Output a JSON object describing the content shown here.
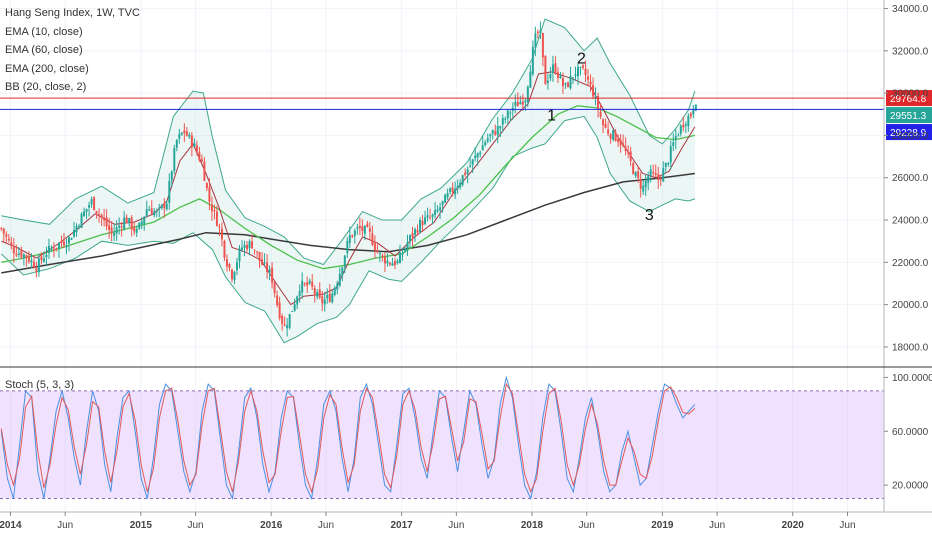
{
  "chart_data": [
    {
      "type": "candlestick",
      "title": "Hang Seng Index, 1W, TVC",
      "legend": [
        "Hang Seng Index, 1W, TVC",
        "EMA (10, close)",
        "EMA (60, close)",
        "EMA (200, close)",
        "BB (20, close, 2)"
      ],
      "y_ticks": [
        34000,
        32000,
        30000,
        28000,
        26000,
        24000,
        22000,
        20000,
        18000
      ],
      "y_tick_labels": [
        "34000.0",
        "32000.0",
        "30000.0",
        "28000.0",
        "26000.0",
        "24000.0",
        "22000.0",
        "20000.0",
        "18000.0"
      ],
      "ylim": [
        17100,
        34400
      ],
      "x_ticks": [
        {
          "label": "2014",
          "x": 2014.0
        },
        {
          "label": "Jun",
          "x": 2014.42
        },
        {
          "label": "2015",
          "x": 2015.0
        },
        {
          "label": "Jun",
          "x": 2015.42
        },
        {
          "label": "2016",
          "x": 2016.0
        },
        {
          "label": "Jun",
          "x": 2016.42
        },
        {
          "label": "2017",
          "x": 2017.0
        },
        {
          "label": "Jun",
          "x": 2017.42
        },
        {
          "label": "2018",
          "x": 2018.0
        },
        {
          "label": "Jun",
          "x": 2018.42
        },
        {
          "label": "2019",
          "x": 2019.0
        },
        {
          "label": "Jun",
          "x": 2019.42
        },
        {
          "label": "2020",
          "x": 2020.0
        },
        {
          "label": "Jun",
          "x": 2020.42
        }
      ],
      "xlim": [
        2013.92,
        2020.7
      ],
      "price_path": [
        [
          2013.93,
          23600
        ],
        [
          2014.02,
          22600
        ],
        [
          2014.12,
          22300
        ],
        [
          2014.2,
          21800
        ],
        [
          2014.28,
          22500
        ],
        [
          2014.38,
          22900
        ],
        [
          2014.45,
          23100
        ],
        [
          2014.55,
          24200
        ],
        [
          2014.62,
          24900
        ],
        [
          2014.7,
          24100
        ],
        [
          2014.78,
          23300
        ],
        [
          2014.88,
          24100
        ],
        [
          2014.97,
          23400
        ],
        [
          2015.05,
          24600
        ],
        [
          2015.13,
          24300
        ],
        [
          2015.2,
          24900
        ],
        [
          2015.27,
          27700
        ],
        [
          2015.33,
          28200
        ],
        [
          2015.4,
          27600
        ],
        [
          2015.47,
          26700
        ],
        [
          2015.52,
          25000
        ],
        [
          2015.55,
          24500
        ],
        [
          2015.6,
          23700
        ],
        [
          2015.65,
          22200
        ],
        [
          2015.7,
          21400
        ],
        [
          2015.77,
          22700
        ],
        [
          2015.85,
          22900
        ],
        [
          2015.92,
          22000
        ],
        [
          2016.0,
          21400
        ],
        [
          2016.05,
          19900
        ],
        [
          2016.1,
          18900
        ],
        [
          2016.15,
          19600
        ],
        [
          2016.22,
          20900
        ],
        [
          2016.3,
          20900
        ],
        [
          2016.38,
          20100
        ],
        [
          2016.46,
          20400
        ],
        [
          2016.52,
          21400
        ],
        [
          2016.6,
          23200
        ],
        [
          2016.67,
          23600
        ],
        [
          2016.75,
          23400
        ],
        [
          2016.82,
          22400
        ],
        [
          2016.9,
          22000
        ],
        [
          2016.97,
          22000
        ],
        [
          2017.05,
          23000
        ],
        [
          2017.15,
          23900
        ],
        [
          2017.25,
          24200
        ],
        [
          2017.35,
          25100
        ],
        [
          2017.45,
          25900
        ],
        [
          2017.55,
          26800
        ],
        [
          2017.65,
          27800
        ],
        [
          2017.75,
          28400
        ],
        [
          2017.85,
          29300
        ],
        [
          2017.95,
          29800
        ],
        [
          2018.02,
          32500
        ],
        [
          2018.06,
          33000
        ],
        [
          2018.1,
          30500
        ],
        [
          2018.17,
          31300
        ],
        [
          2018.25,
          30200
        ],
        [
          2018.33,
          31000
        ],
        [
          2018.4,
          31000
        ],
        [
          2018.47,
          30000
        ],
        [
          2018.55,
          28400
        ],
        [
          2018.6,
          28100
        ],
        [
          2018.67,
          27800
        ],
        [
          2018.75,
          26800
        ],
        [
          2018.8,
          26000
        ],
        [
          2018.85,
          25500
        ],
        [
          2018.9,
          26200
        ],
        [
          2018.97,
          25900
        ],
        [
          2019.03,
          26600
        ],
        [
          2019.1,
          27900
        ],
        [
          2019.17,
          28700
        ],
        [
          2019.22,
          29000
        ],
        [
          2019.25,
          29700
        ]
      ],
      "ema10_path": [
        [
          2013.93,
          23000
        ],
        [
          2014.05,
          22700
        ],
        [
          2014.2,
          22200
        ],
        [
          2014.35,
          22800
        ],
        [
          2014.5,
          23500
        ],
        [
          2014.65,
          24300
        ],
        [
          2014.8,
          23800
        ],
        [
          2014.95,
          23900
        ],
        [
          2015.1,
          24300
        ],
        [
          2015.2,
          24900
        ],
        [
          2015.3,
          26800
        ],
        [
          2015.4,
          27600
        ],
        [
          2015.5,
          26200
        ],
        [
          2015.6,
          24600
        ],
        [
          2015.7,
          22700
        ],
        [
          2015.8,
          22500
        ],
        [
          2015.92,
          22100
        ],
        [
          2016.05,
          20900
        ],
        [
          2016.15,
          20000
        ],
        [
          2016.25,
          20400
        ],
        [
          2016.4,
          20500
        ],
        [
          2016.5,
          20800
        ],
        [
          2016.6,
          22100
        ],
        [
          2016.7,
          23200
        ],
        [
          2016.82,
          22900
        ],
        [
          2016.95,
          22300
        ],
        [
          2017.1,
          23200
        ],
        [
          2017.25,
          23900
        ],
        [
          2017.4,
          25300
        ],
        [
          2017.55,
          26400
        ],
        [
          2017.7,
          27600
        ],
        [
          2017.85,
          28800
        ],
        [
          2017.97,
          29500
        ],
        [
          2018.05,
          30900
        ],
        [
          2018.15,
          31000
        ],
        [
          2018.3,
          30700
        ],
        [
          2018.45,
          30300
        ],
        [
          2018.55,
          29200
        ],
        [
          2018.65,
          28000
        ],
        [
          2018.75,
          27100
        ],
        [
          2018.85,
          26200
        ],
        [
          2018.95,
          26000
        ],
        [
          2019.05,
          26300
        ],
        [
          2019.15,
          27400
        ],
        [
          2019.25,
          28400
        ]
      ],
      "ema60_path": [
        [
          2013.93,
          22000
        ],
        [
          2014.1,
          22200
        ],
        [
          2014.3,
          22500
        ],
        [
          2014.5,
          22900
        ],
        [
          2014.7,
          23300
        ],
        [
          2014.9,
          23600
        ],
        [
          2015.1,
          23900
        ],
        [
          2015.3,
          24600
        ],
        [
          2015.45,
          25000
        ],
        [
          2015.6,
          24500
        ],
        [
          2015.8,
          23600
        ],
        [
          2016.0,
          22800
        ],
        [
          2016.2,
          22100
        ],
        [
          2016.4,
          21700
        ],
        [
          2016.6,
          21900
        ],
        [
          2016.8,
          22200
        ],
        [
          2017.0,
          22400
        ],
        [
          2017.2,
          23200
        ],
        [
          2017.4,
          24100
        ],
        [
          2017.6,
          25200
        ],
        [
          2017.8,
          26600
        ],
        [
          2018.0,
          27900
        ],
        [
          2018.2,
          29000
        ],
        [
          2018.35,
          29400
        ],
        [
          2018.5,
          29300
        ],
        [
          2018.65,
          28900
        ],
        [
          2018.8,
          28400
        ],
        [
          2018.95,
          27900
        ],
        [
          2019.1,
          27800
        ],
        [
          2019.25,
          28000
        ]
      ],
      "ema200_path": [
        [
          2013.93,
          21500
        ],
        [
          2014.3,
          21900
        ],
        [
          2014.7,
          22300
        ],
        [
          2015.0,
          22700
        ],
        [
          2015.3,
          23100
        ],
        [
          2015.5,
          23400
        ],
        [
          2015.8,
          23300
        ],
        [
          2016.0,
          23100
        ],
        [
          2016.3,
          22800
        ],
        [
          2016.6,
          22600
        ],
        [
          2016.9,
          22500
        ],
        [
          2017.2,
          22800
        ],
        [
          2017.5,
          23300
        ],
        [
          2017.8,
          24000
        ],
        [
          2018.1,
          24700
        ],
        [
          2018.4,
          25300
        ],
        [
          2018.7,
          25800
        ],
        [
          2019.0,
          26000
        ],
        [
          2019.25,
          26200
        ]
      ],
      "bb_upper_path": [
        [
          2013.93,
          24200
        ],
        [
          2014.1,
          24000
        ],
        [
          2014.3,
          23800
        ],
        [
          2014.5,
          25000
        ],
        [
          2014.7,
          25600
        ],
        [
          2014.9,
          24800
        ],
        [
          2015.1,
          25300
        ],
        [
          2015.25,
          28900
        ],
        [
          2015.4,
          30100
        ],
        [
          2015.48,
          30000
        ],
        [
          2015.55,
          27900
        ],
        [
          2015.65,
          25400
        ],
        [
          2015.8,
          24100
        ],
        [
          2015.95,
          23700
        ],
        [
          2016.1,
          23200
        ],
        [
          2016.25,
          22200
        ],
        [
          2016.4,
          21900
        ],
        [
          2016.55,
          23100
        ],
        [
          2016.7,
          24400
        ],
        [
          2016.85,
          24000
        ],
        [
          2017.0,
          24000
        ],
        [
          2017.15,
          25000
        ],
        [
          2017.3,
          25500
        ],
        [
          2017.5,
          26700
        ],
        [
          2017.7,
          28800
        ],
        [
          2017.85,
          30000
        ],
        [
          2018.0,
          31600
        ],
        [
          2018.1,
          33500
        ],
        [
          2018.25,
          33100
        ],
        [
          2018.4,
          32000
        ],
        [
          2018.5,
          32600
        ],
        [
          2018.6,
          31400
        ],
        [
          2018.75,
          29900
        ],
        [
          2018.9,
          28000
        ],
        [
          2019.0,
          27600
        ],
        [
          2019.1,
          28300
        ],
        [
          2019.2,
          29200
        ],
        [
          2019.25,
          30100
        ]
      ],
      "bb_lower_path": [
        [
          2013.93,
          22400
        ],
        [
          2014.1,
          21400
        ],
        [
          2014.3,
          21700
        ],
        [
          2014.5,
          22200
        ],
        [
          2014.7,
          23000
        ],
        [
          2014.9,
          22800
        ],
        [
          2015.1,
          23000
        ],
        [
          2015.25,
          22900
        ],
        [
          2015.4,
          23400
        ],
        [
          2015.55,
          22600
        ],
        [
          2015.65,
          21300
        ],
        [
          2015.8,
          20100
        ],
        [
          2015.95,
          19700
        ],
        [
          2016.1,
          18200
        ],
        [
          2016.2,
          18500
        ],
        [
          2016.35,
          19100
        ],
        [
          2016.5,
          19400
        ],
        [
          2016.6,
          20000
        ],
        [
          2016.75,
          21600
        ],
        [
          2016.9,
          21200
        ],
        [
          2017.0,
          21100
        ],
        [
          2017.15,
          22000
        ],
        [
          2017.3,
          23000
        ],
        [
          2017.5,
          24200
        ],
        [
          2017.7,
          25500
        ],
        [
          2017.85,
          27000
        ],
        [
          2018.0,
          27400
        ],
        [
          2018.1,
          27600
        ],
        [
          2018.25,
          28700
        ],
        [
          2018.4,
          28900
        ],
        [
          2018.5,
          27900
        ],
        [
          2018.6,
          26200
        ],
        [
          2018.75,
          24900
        ],
        [
          2018.9,
          24400
        ],
        [
          2019.0,
          24700
        ],
        [
          2019.1,
          25000
        ],
        [
          2019.2,
          24900
        ],
        [
          2019.25,
          25000
        ]
      ],
      "horizontal_lines": [
        {
          "value": 29764.8,
          "label": "29764.8",
          "color": "#e0272b"
        },
        {
          "value": 29551.3,
          "label": "29551.3",
          "color": "#26a69a",
          "line": false
        },
        {
          "value": 29228.9,
          "label": "29228.9",
          "color": "#2121e8"
        }
      ],
      "annotations": [
        {
          "text": "1",
          "x": 2018.15,
          "y": 28700
        },
        {
          "text": "2",
          "x": 2018.38,
          "y": 31400
        },
        {
          "text": "3",
          "x": 2018.9,
          "y": 24000
        }
      ]
    },
    {
      "type": "line",
      "title": "Stoch (5, 3, 3)",
      "y_ticks": [
        100,
        60,
        20
      ],
      "y_tick_labels": [
        "100.0000",
        "60.0000",
        "20.0000"
      ],
      "ylim": [
        0,
        107
      ],
      "band": [
        10,
        90
      ],
      "k_values": [
        60,
        25,
        10,
        50,
        90,
        85,
        30,
        10,
        40,
        75,
        90,
        70,
        40,
        20,
        60,
        90,
        75,
        35,
        15,
        55,
        85,
        90,
        60,
        25,
        10,
        40,
        80,
        95,
        90,
        60,
        30,
        15,
        30,
        75,
        95,
        90,
        55,
        20,
        10,
        45,
        85,
        92,
        70,
        35,
        15,
        30,
        70,
        90,
        85,
        50,
        20,
        10,
        40,
        80,
        90,
        75,
        40,
        15,
        40,
        85,
        95,
        80,
        50,
        20,
        15,
        50,
        88,
        92,
        70,
        40,
        25,
        60,
        90,
        85,
        55,
        30,
        60,
        90,
        80,
        50,
        25,
        40,
        80,
        100,
        85,
        50,
        20,
        10,
        30,
        70,
        95,
        90,
        60,
        25,
        15,
        40,
        70,
        85,
        60,
        30,
        15,
        20,
        45,
        60,
        40,
        20,
        25,
        50,
        75,
        95,
        92,
        80,
        70,
        75,
        80
      ],
      "d_values": [
        62,
        35,
        20,
        40,
        78,
        86,
        45,
        18,
        35,
        65,
        85,
        76,
        48,
        28,
        50,
        82,
        78,
        45,
        22,
        45,
        78,
        88,
        68,
        35,
        15,
        32,
        70,
        90,
        92,
        68,
        38,
        20,
        28,
        65,
        90,
        92,
        62,
        30,
        15,
        38,
        75,
        90,
        75,
        45,
        22,
        28,
        60,
        85,
        86,
        58,
        28,
        15,
        32,
        70,
        87,
        80,
        48,
        22,
        35,
        75,
        92,
        85,
        58,
        28,
        18,
        42,
        80,
        90,
        76,
        48,
        30,
        52,
        84,
        86,
        62,
        38,
        52,
        84,
        82,
        58,
        32,
        38,
        70,
        95,
        88,
        58,
        28,
        15,
        25,
        60,
        88,
        92,
        68,
        35,
        20,
        35,
        62,
        80,
        65,
        38,
        20,
        20,
        38,
        55,
        45,
        28,
        25,
        42,
        68,
        90,
        93,
        85,
        74,
        73,
        77
      ]
    }
  ]
}
